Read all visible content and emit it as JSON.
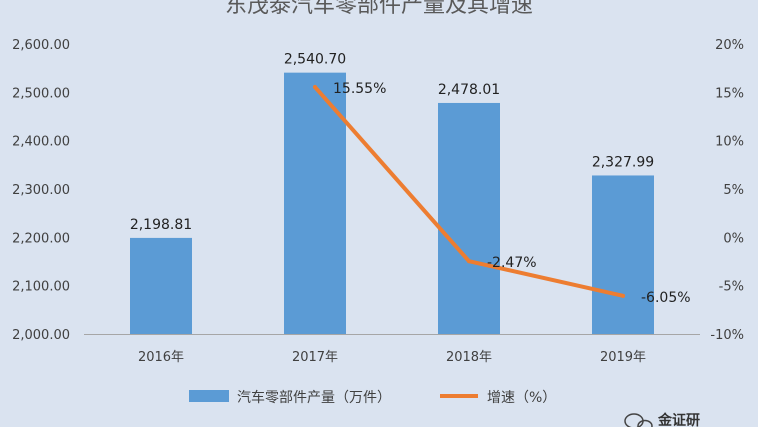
{
  "chart_data": {
    "type": "bar",
    "title": "东茂泰汽车零部件产量及其增速",
    "categories": [
      "2016年",
      "2017年",
      "2018年",
      "2019年"
    ],
    "series": [
      {
        "name": "汽车零部件产量（万件）",
        "type": "bar",
        "axis": "left",
        "values": [
          2198.81,
          2540.7,
          2478.01,
          2327.99
        ],
        "labels": [
          "2,198.81",
          "2,540.70",
          "2,478.01",
          "2,327.99"
        ],
        "color": "#5b9bd5"
      },
      {
        "name": "增速（%）",
        "type": "line",
        "axis": "right",
        "values": [
          null,
          15.55,
          -2.47,
          -6.05
        ],
        "labels": [
          "",
          "15.55%",
          "-2.47%",
          "-6.05%"
        ],
        "color": "#ed7d31"
      }
    ],
    "ylim_left": [
      2000,
      2600
    ],
    "ylim_right": [
      -10,
      20
    ],
    "left_ticks": [
      2000,
      2100,
      2200,
      2300,
      2400,
      2500,
      2600
    ],
    "left_tick_labels": [
      "2,000.00",
      "2,100.00",
      "2,200.00",
      "2,300.00",
      "2,400.00",
      "2,500.00",
      "2,600.00"
    ],
    "right_ticks": [
      -10,
      -5,
      0,
      5,
      10,
      15,
      20
    ],
    "right_tick_labels": [
      "-10%",
      "-5%",
      "0%",
      "5%",
      "10%",
      "15%",
      "20%"
    ],
    "grid": false,
    "legend_position": "bottom"
  },
  "watermark": {
    "text": "金证研"
  }
}
